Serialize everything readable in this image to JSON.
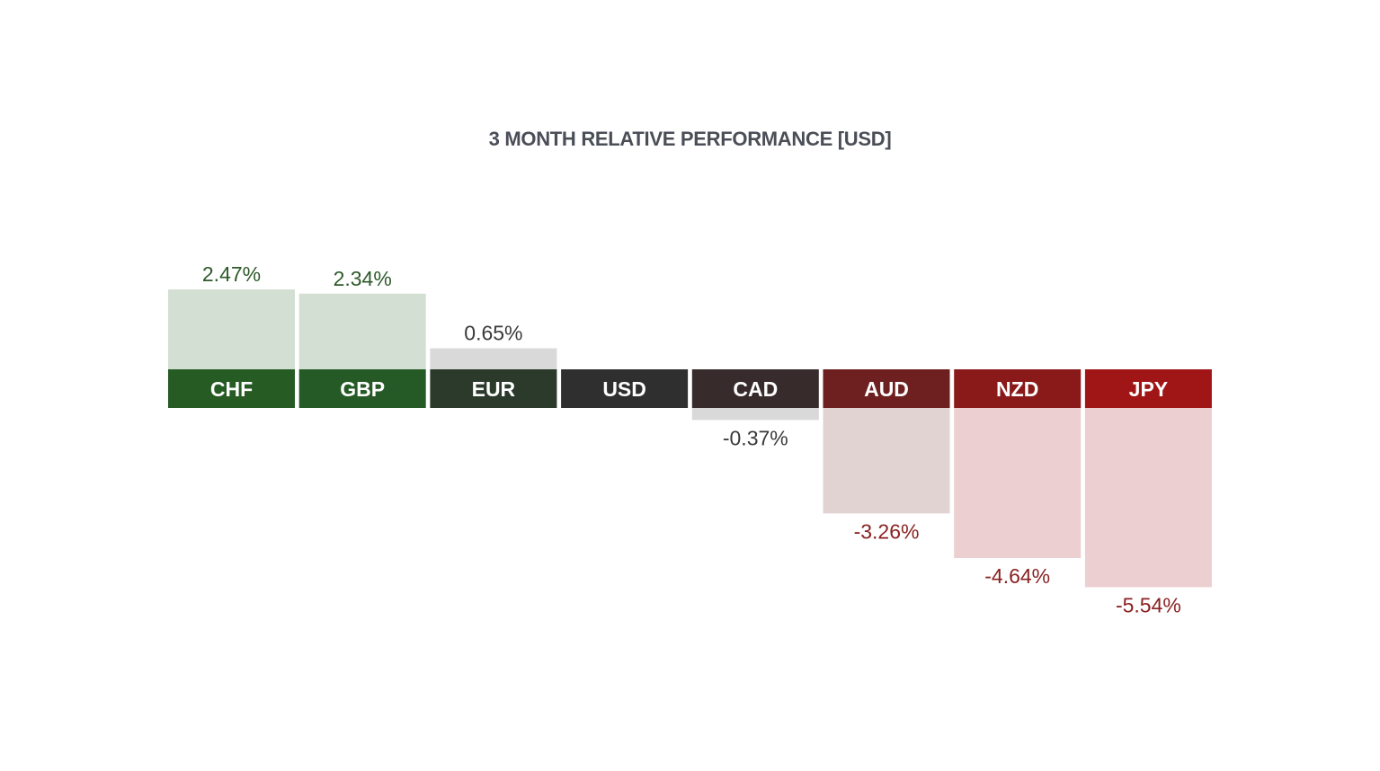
{
  "chart_data": {
    "type": "bar",
    "title": "3 MONTH RELATIVE PERFORMANCE  [USD]",
    "categories": [
      "CHF",
      "GBP",
      "EUR",
      "USD",
      "CAD",
      "AUD",
      "NZD",
      "JPY"
    ],
    "values": [
      2.47,
      2.34,
      0.65,
      0,
      -0.37,
      -3.26,
      -4.64,
      -5.54
    ],
    "value_labels": [
      "2.47%",
      "2.34%",
      "0.65%",
      "",
      "-0.37%",
      "-3.26%",
      "-4.64%",
      "-5.54%"
    ],
    "xlabel": "",
    "ylabel": "",
    "grid": false,
    "colors": {
      "header": [
        "#265b24",
        "#255a26",
        "#2b3a2b",
        "#2f2f2f",
        "#382b2b",
        "#6e1f1f",
        "#8a1a1a",
        "#a01616"
      ],
      "positive_fill": "#d4dfd3",
      "neutral_fill": "#d9d9d9",
      "negative_fill": "#e2d3d3",
      "negative_fill_strong": "#eccfd0",
      "positive_text": "#2e5a2a",
      "neutral_text": "#3a3a3a",
      "negative_text": "#8a2222"
    }
  }
}
